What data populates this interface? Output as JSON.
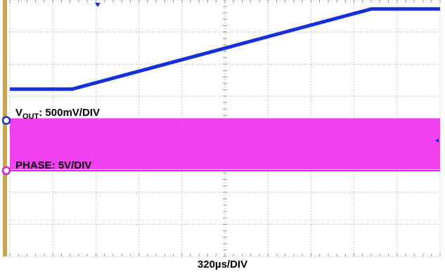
{
  "labels": {
    "vout_prefix": "V",
    "vout_sub": "OUT",
    "vout_scale": ": 500mV/DIV",
    "phase": "PHASE: 5V/DIV",
    "timebase": "320µs/DIV"
  },
  "colors": {
    "background": "#ffffff",
    "grid": "#9a9a9a",
    "left_bar": "#c8a64e",
    "vout_trace": "#1630d8",
    "phase_trace": "#f040f0",
    "phase_marker": "#d020d0",
    "vout_marker": "#1630d8",
    "text": "#000000"
  },
  "chart_data": {
    "type": "line",
    "grid": true,
    "x_divisions": 10,
    "y_divisions": 8,
    "xlabel": "320µs/DIV",
    "series": [
      {
        "trace": "VOUT",
        "scale": "500mV/DIV",
        "x": [
          0,
          1.45,
          8.4,
          10
        ],
        "y": [
          5.22,
          5.22,
          7.72,
          7.72
        ]
      },
      {
        "trace": "PHASE",
        "scale": "5V/DIV",
        "band_top_div": 4.31,
        "baseline_div": 2.72
      }
    ]
  }
}
